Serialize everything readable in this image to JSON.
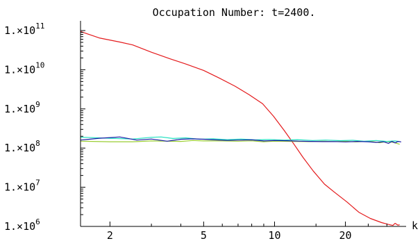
{
  "chart_data": {
    "type": "line",
    "title": "Occupation Number: t=2400.",
    "xlabel": "k",
    "ylabel": "",
    "x_scale": "log",
    "y_scale": "log",
    "xlim": [
      1.5,
      35
    ],
    "ylim": [
      1000000,
      100000000000
    ],
    "x_ticks": [
      {
        "value": 2,
        "label": "2"
      },
      {
        "value": 5,
        "label": "5"
      },
      {
        "value": 10,
        "label": "10"
      },
      {
        "value": 20,
        "label": "20"
      }
    ],
    "y_ticks": [
      {
        "value": 1000000,
        "mant": "1.×10",
        "exp": "6"
      },
      {
        "value": 10000000,
        "mant": "1.×10",
        "exp": "7"
      },
      {
        "value": 100000000,
        "mant": "1.×10",
        "exp": "8"
      },
      {
        "value": 1000000000,
        "mant": "1.×10",
        "exp": "9"
      },
      {
        "value": 10000000000,
        "mant": "1.×10",
        "exp": "10"
      },
      {
        "value": 100000000000,
        "mant": "1.×10",
        "exp": "11"
      }
    ],
    "grid": false,
    "series": [
      {
        "color": "#e41a1c",
        "x": [
          1.5,
          1.8,
          2.2,
          2.5,
          3.0,
          3.6,
          4.2,
          5.0,
          5.8,
          6.8,
          7.8,
          8.9,
          9.9,
          11.0,
          12.1,
          13.2,
          14.6,
          16.3,
          17.9,
          20.3,
          22.8,
          25.5,
          28.5,
          30.5,
          31.8,
          32.5,
          33.4,
          34.0
        ],
        "y": [
          95000000000,
          65000000000,
          51000000000,
          43000000000,
          28000000000,
          19000000000,
          14000000000,
          9600000000,
          6200000000,
          3800000000,
          2300000000,
          1350000000,
          650000000,
          280000000,
          125000000,
          58000000,
          26000000,
          12000000,
          7600000,
          4200000,
          2300000,
          1600000,
          1250000,
          1120000,
          1060000,
          1200000,
          1080000,
          1100000
        ]
      },
      {
        "color": "#9acd32",
        "x": [
          1.5,
          2.0,
          2.5,
          3.0,
          3.5,
          4.0,
          4.5,
          5.0,
          6.0,
          7.0,
          8.0,
          9.0,
          10.0,
          12.0,
          14.0,
          16.0,
          18.0,
          20.0,
          22.0,
          24.0,
          26.0,
          28.0,
          30.0,
          32.0,
          34.0
        ],
        "y": [
          150000000,
          145000000,
          145000000,
          152000000,
          150000000,
          148000000,
          156000000,
          152000000,
          152000000,
          150000000,
          153000000,
          145000000,
          150000000,
          148000000,
          146000000,
          150000000,
          147000000,
          150000000,
          144000000,
          147000000,
          146000000,
          137000000,
          148000000,
          140000000,
          125000000
        ]
      },
      {
        "color": "#20e0c0",
        "x": [
          1.5,
          2.0,
          2.5,
          3.0,
          3.3,
          3.7,
          4.2,
          4.8,
          5.5,
          6.3,
          7.2,
          8.3,
          9.5,
          11.0,
          12.5,
          14.5,
          16.5,
          19.0,
          21.5,
          24.0,
          27.0,
          30.0,
          32.5,
          34.0
        ],
        "y": [
          190000000,
          178000000,
          170000000,
          188000000,
          192000000,
          176000000,
          182000000,
          168000000,
          172000000,
          164000000,
          170000000,
          162000000,
          166000000,
          160000000,
          164000000,
          156000000,
          160000000,
          155000000,
          158000000,
          150000000,
          156000000,
          148000000,
          152000000,
          146000000
        ]
      },
      {
        "color": "#1a1aa6",
        "x": [
          1.5,
          1.8,
          2.2,
          2.6,
          3.0,
          3.5,
          4.0,
          4.5,
          5.0,
          5.6,
          6.3,
          7.1,
          8.0,
          9.0,
          10.0,
          11.3,
          12.8,
          14.3,
          16.0,
          18.0,
          20.0,
          22.5,
          25.0,
          27.0,
          29.0,
          30.5,
          31.5,
          32.5,
          33.5,
          34.5
        ],
        "y": [
          160000000,
          178000000,
          192000000,
          160000000,
          170000000,
          150000000,
          168000000,
          172000000,
          168000000,
          162000000,
          157000000,
          160000000,
          162000000,
          152000000,
          156000000,
          154000000,
          150000000,
          148000000,
          146000000,
          147000000,
          144000000,
          148000000,
          145000000,
          140000000,
          145000000,
          132000000,
          148000000,
          136000000,
          148000000,
          144000000
        ]
      }
    ]
  }
}
